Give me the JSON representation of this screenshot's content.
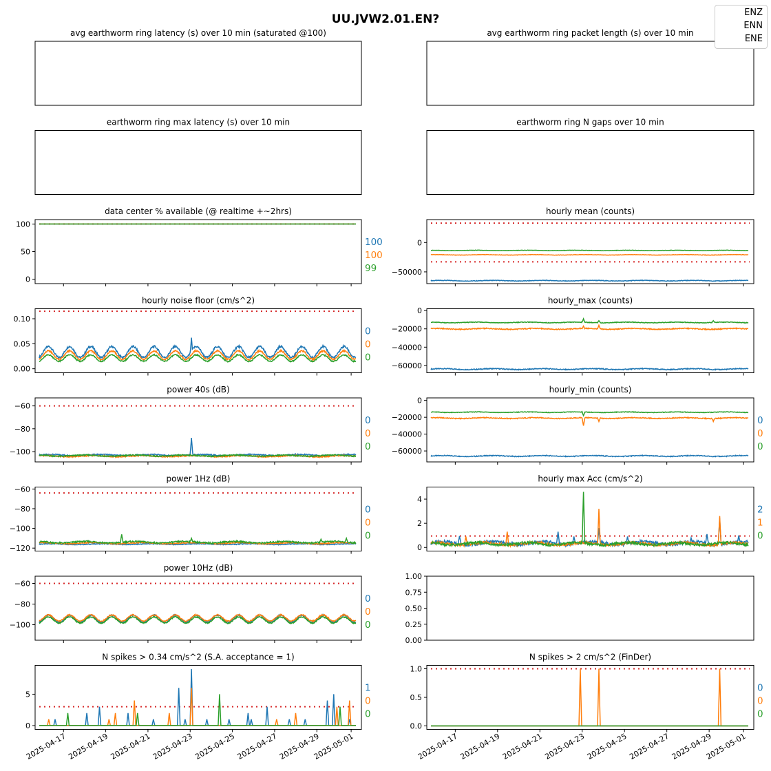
{
  "figure": {
    "title": "UU.JVW2.01.EN?",
    "legend": [
      "ENZ",
      "ENN",
      "ENE"
    ],
    "colors": {
      "ENZ": "#1f77b4",
      "ENN": "#ff7f0e",
      "ENE": "#2ca02c",
      "threshold": "#d62728"
    },
    "date_ticks": [
      "2025-04-17",
      "2025-04-19",
      "2025-04-21",
      "2025-04-23",
      "2025-04-25",
      "2025-04-27",
      "2025-04-29",
      "2025-05-01"
    ]
  },
  "chart_data": [
    {
      "type": "line",
      "title": "avg earthworm ring latency (s)   over 10 min (saturated @100)",
      "series": [],
      "yticks": [],
      "last_values": [],
      "empty": true
    },
    {
      "type": "line",
      "title": "avg earthworm ring packet length (s)   over 10 min",
      "series": [],
      "yticks": [],
      "last_values": [],
      "empty": true
    },
    {
      "type": "line",
      "title": "earthworm ring max latency (s)   over 10 min",
      "series": [],
      "yticks": [],
      "last_values": [],
      "empty": true
    },
    {
      "type": "line",
      "title": "earthworm ring N gaps   over 10 min",
      "series": [],
      "yticks": [],
      "last_values": [],
      "empty": true
    },
    {
      "type": "line",
      "title": "data center % available (@ realtime +~2hrs)",
      "ylim": [
        -8,
        108
      ],
      "yticks": [
        "0",
        "50",
        "100"
      ],
      "ytick_values": [
        0,
        50,
        100
      ],
      "thresholds": [
        100
      ],
      "series": [
        {
          "name": "ENZ",
          "level": 100,
          "amp": 0
        },
        {
          "name": "ENN",
          "level": 100,
          "amp": 0
        },
        {
          "name": "ENE",
          "level": 100,
          "amp": 0
        }
      ],
      "last_values": [
        "100",
        "100",
        "99"
      ]
    },
    {
      "type": "line",
      "title": "hourly mean (counts)",
      "ylim": [
        -70000,
        39000
      ],
      "yticks": [
        "−50000",
        "0"
      ],
      "ytick_values": [
        -50000,
        0
      ],
      "thresholds": [
        33000,
        -33000
      ],
      "series": [
        {
          "name": "ENZ",
          "level": -65000,
          "amp": 1000
        },
        {
          "name": "ENN",
          "level": -21000,
          "amp": 700
        },
        {
          "name": "ENE",
          "level": -13500,
          "amp": 600
        }
      ],
      "last_values": []
    },
    {
      "type": "line",
      "title": "hourly noise floor (cm/s^2)",
      "ylim": [
        -0.008,
        0.12
      ],
      "yticks": [
        "0.00",
        "0.05",
        "0.10"
      ],
      "ytick_values": [
        0,
        0.05,
        0.1
      ],
      "thresholds": [
        0.115
      ],
      "series": [
        {
          "name": "ENZ",
          "level": 0.028,
          "amp": 0.022,
          "diurnal": true
        },
        {
          "name": "ENN",
          "level": 0.023,
          "amp": 0.017,
          "diurnal": true
        },
        {
          "name": "ENE",
          "level": 0.018,
          "amp": 0.013,
          "diurnal": true
        }
      ],
      "last_values": [
        "0",
        "0",
        "0"
      ]
    },
    {
      "type": "line",
      "title": "hourly_max (counts)",
      "ylim": [
        -68000,
        2000
      ],
      "yticks": [
        "−60000",
        "−40000",
        "−20000",
        "0"
      ],
      "ytick_values": [
        -60000,
        -40000,
        -20000,
        0
      ],
      "thresholds": [],
      "series": [
        {
          "name": "ENZ",
          "level": -64000,
          "amp": 1000
        },
        {
          "name": "ENN",
          "level": -20000,
          "amp": 1000
        },
        {
          "name": "ENE",
          "level": -13000,
          "amp": 700
        }
      ],
      "last_values": []
    },
    {
      "type": "line",
      "title": "power 40s (dB)",
      "ylim": [
        -109,
        -53
      ],
      "yticks": [
        "−100",
        "−80",
        "−60"
      ],
      "ytick_values": [
        -100,
        -80,
        -60
      ],
      "thresholds": [
        -60
      ],
      "series": [
        {
          "name": "ENZ",
          "level": -103,
          "amp": 1
        },
        {
          "name": "ENN",
          "level": -104,
          "amp": 1
        },
        {
          "name": "ENE",
          "level": -103.5,
          "amp": 1
        }
      ],
      "last_values": [
        "0",
        "0",
        "0"
      ]
    },
    {
      "type": "line",
      "title": "hourly_min (counts)",
      "ylim": [
        -73000,
        3000
      ],
      "yticks": [
        "−60000",
        "−40000",
        "−20000",
        "0"
      ],
      "ytick_values": [
        -60000,
        -40000,
        -20000,
        0
      ],
      "thresholds": [],
      "series": [
        {
          "name": "ENZ",
          "level": -66000,
          "amp": 1000
        },
        {
          "name": "ENN",
          "level": -21000,
          "amp": 1000
        },
        {
          "name": "ENE",
          "level": -14000,
          "amp": 700
        }
      ],
      "last_values": [
        "0",
        "0",
        "0"
      ]
    },
    {
      "type": "line",
      "title": "power 1Hz (dB)",
      "ylim": [
        -123,
        -58
      ],
      "yticks": [
        "−120",
        "−100",
        "−80",
        "−60"
      ],
      "ytick_values": [
        -120,
        -100,
        -80,
        -60
      ],
      "thresholds": [
        -64
      ],
      "series": [
        {
          "name": "ENZ",
          "level": -116,
          "amp": 0.8
        },
        {
          "name": "ENN",
          "level": -115,
          "amp": 1
        },
        {
          "name": "ENE",
          "level": -114,
          "amp": 1.5
        }
      ],
      "last_values": [
        "0",
        "0",
        "0"
      ]
    },
    {
      "type": "line",
      "title": "hourly max Acc (cm/s^2)",
      "ylim": [
        -0.3,
        5.0
      ],
      "yticks": [
        "0",
        "2",
        "4"
      ],
      "ytick_values": [
        0,
        2,
        4
      ],
      "thresholds": [
        0.95
      ],
      "series": [
        {
          "name": "ENZ",
          "level": 0.35,
          "amp": 0.25
        },
        {
          "name": "ENN",
          "level": 0.3,
          "amp": 0.2
        },
        {
          "name": "ENE",
          "level": 0.3,
          "amp": 0.2
        }
      ],
      "last_values": [
        "2",
        "1",
        "0"
      ]
    },
    {
      "type": "line",
      "title": "power 10Hz (dB)",
      "ylim": [
        -115,
        -53
      ],
      "yticks": [
        "−100",
        "−80",
        "−60"
      ],
      "ytick_values": [
        -100,
        -80,
        -60
      ],
      "thresholds": [
        -60
      ],
      "series": [
        {
          "name": "ENZ",
          "level": -96,
          "amp": 7,
          "diurnal": true
        },
        {
          "name": "ENN",
          "level": -95,
          "amp": 6,
          "diurnal": true
        },
        {
          "name": "ENE",
          "level": -97,
          "amp": 6,
          "diurnal": true
        }
      ],
      "last_values": [
        "0",
        "0",
        "0"
      ]
    },
    {
      "type": "line",
      "title": "",
      "ylim": [
        0,
        1
      ],
      "yticks": [
        "0.00",
        "0.25",
        "0.50",
        "0.75",
        "1.00"
      ],
      "ytick_values": [
        0,
        0.25,
        0.5,
        0.75,
        1
      ],
      "thresholds": [],
      "series": [],
      "last_values": [],
      "nodates": true
    },
    {
      "type": "line",
      "title": "N spikes > 0.34 cm/s^2 (S.A. acceptance = 1)",
      "ylim": [
        -0.6,
        9.6
      ],
      "yticks": [
        "0",
        "5"
      ],
      "ytick_values": [
        0,
        5
      ],
      "thresholds": [
        3
      ],
      "series": [
        {
          "name": "ENZ",
          "level": 0,
          "amp": 0
        },
        {
          "name": "ENN",
          "level": 0,
          "amp": 0
        },
        {
          "name": "ENE",
          "level": 0,
          "amp": 0
        }
      ],
      "last_values": [
        "1",
        "0",
        "0"
      ],
      "labels_dates": true
    },
    {
      "type": "line",
      "title": "N spikes > 2 cm/s^2 (FinDer)",
      "ylim": [
        -0.06,
        1.06
      ],
      "yticks": [
        "0.0",
        "0.5",
        "1.0"
      ],
      "ytick_values": [
        0,
        0.5,
        1
      ],
      "thresholds": [
        1
      ],
      "series": [
        {
          "name": "ENZ",
          "level": 0,
          "amp": 0
        },
        {
          "name": "ENN",
          "level": 0,
          "amp": 0
        },
        {
          "name": "ENE",
          "level": 0,
          "amp": 0
        }
      ],
      "last_values": [
        "0",
        "0",
        "0"
      ],
      "labels_dates": true
    }
  ]
}
